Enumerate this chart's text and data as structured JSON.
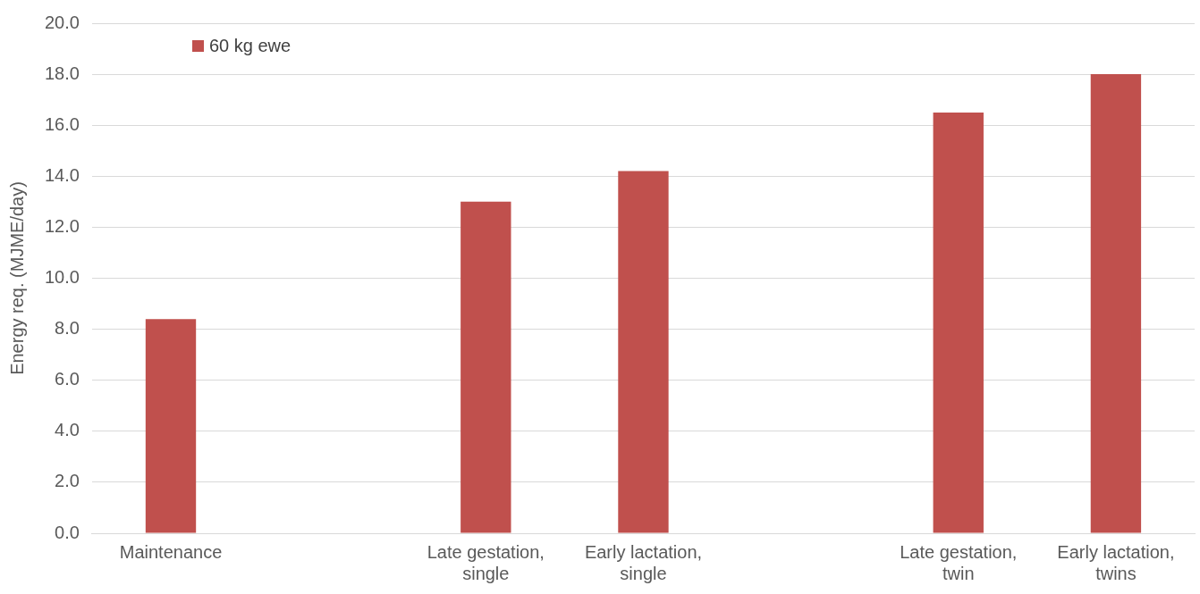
{
  "chart_data": {
    "type": "bar",
    "ylabel": "Energy req. (MJME/day)",
    "categories": [
      "Maintenance",
      null,
      "Late gestation,\nsingle",
      "Early lactation,\nsingle",
      null,
      "Late gestation,\ntwin",
      "Early lactation,\ntwins"
    ],
    "series": [
      {
        "name": "60 kg ewe",
        "color": "#c0504d",
        "values": [
          8.4,
          null,
          13.0,
          14.2,
          null,
          16.5,
          18.0
        ]
      }
    ],
    "ylim": [
      0,
      20
    ],
    "yticks": [
      {
        "value": 0,
        "label": "0.0"
      },
      {
        "value": 2,
        "label": "2.0"
      },
      {
        "value": 4,
        "label": "4.0"
      },
      {
        "value": 6,
        "label": "6.0"
      },
      {
        "value": 8,
        "label": "8.0"
      },
      {
        "value": 10,
        "label": "10.0"
      },
      {
        "value": 12,
        "label": "12.0"
      },
      {
        "value": 14,
        "label": "14.0"
      },
      {
        "value": 16,
        "label": "16.0"
      },
      {
        "value": 18,
        "label": "18.0"
      },
      {
        "value": 20,
        "label": "20.0"
      }
    ],
    "grid": "y",
    "legend": "top left"
  }
}
